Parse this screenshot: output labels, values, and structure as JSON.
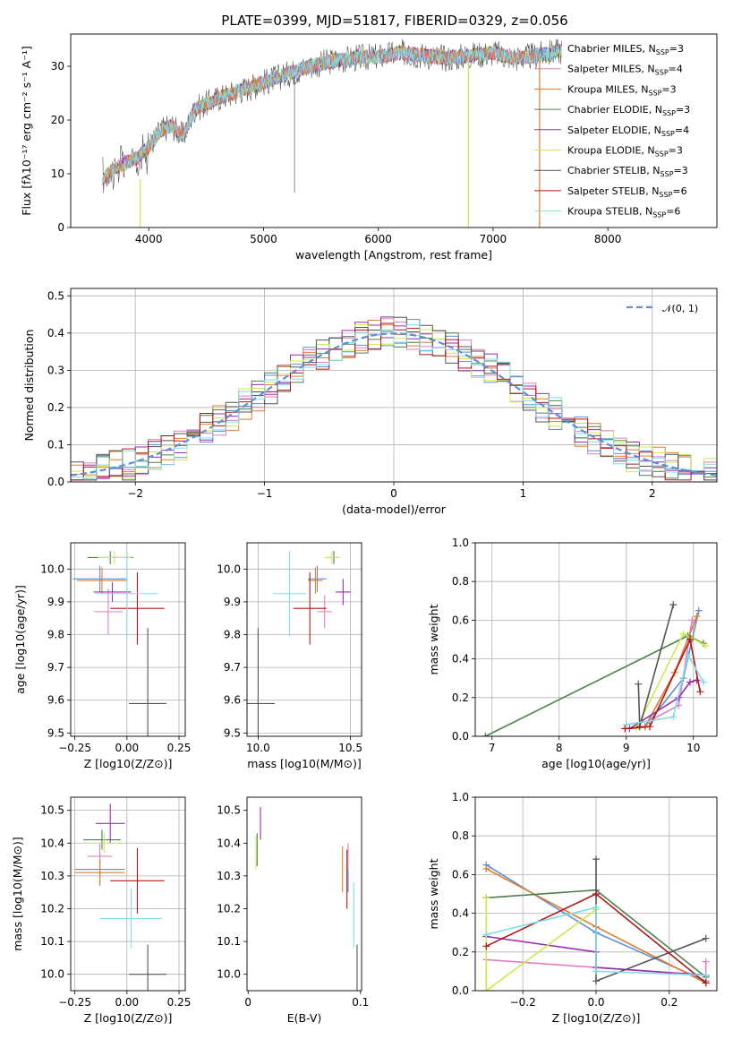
{
  "title": "PLATE=0399, MJD=51817, FIBERID=0329, z=0.056",
  "colors": {
    "Chabrier MILES": "#5b8fd6",
    "Salpeter MILES": "#e07fc0",
    "Kroupa MILES": "#e07b2c",
    "Chabrier ELODIE": "#4f7f4f",
    "Salpeter ELODIE": "#9b2fae",
    "Kroupa ELODIE": "#cde84f",
    "Chabrier STELIB": "#555555",
    "Salpeter STELIB": "#b01818",
    "Kroupa STELIB": "#7fdde6",
    "normal": "#5b8fd6"
  },
  "chart_data": [
    {
      "type": "line",
      "id": "spectrum",
      "title": "PLATE=0399, MJD=51817, FIBERID=0329, z=0.056",
      "xlabel": "wavelength [Angstrom, rest frame]",
      "ylabel": "Flux [fλ10⁻¹⁷ erg cm⁻² s⁻¹ A⁻¹]",
      "xlim": [
        3320,
        8950
      ],
      "ylim": [
        0,
        36
      ],
      "xticks": [
        4000,
        5000,
        6000,
        7000,
        8000
      ],
      "yticks": [
        0,
        10,
        20,
        30
      ],
      "grid": false,
      "legend_position": "top-right",
      "legend": [
        "Chabrier MILES, NSSP=3",
        "Salpeter MILES, NSSP=4",
        "Kroupa MILES, NSSP=3",
        "Chabrier ELODIE, NSSP=3",
        "Salpeter ELODIE, NSSP=4",
        "Kroupa ELODIE, NSSP=3",
        "Chabrier STELIB, NSSP=3",
        "Salpeter STELIB, NSSP=6",
        "Kroupa STELIB, NSSP=6"
      ],
      "continuum": {
        "x": [
          3600,
          3700,
          3800,
          3900,
          4000,
          4100,
          4200,
          4300,
          4400,
          4500,
          4600,
          4800,
          5000,
          5200,
          5400,
          5600,
          5800,
          6000,
          6200,
          6400,
          6600,
          6800,
          7000,
          7200,
          7400,
          7500,
          7600
        ],
        "y": [
          9,
          11,
          12,
          13,
          15,
          18,
          19,
          17,
          22,
          23,
          24,
          25.5,
          27,
          28.5,
          30,
          31,
          31.5,
          31.8,
          32.5,
          32,
          31.5,
          32,
          32.5,
          31.5,
          32,
          32.5,
          33
        ]
      }
    },
    {
      "type": "histogram",
      "id": "residuals",
      "xlabel": "(data-model)/error",
      "ylabel": "Normed distribution",
      "xlim": [
        -2.5,
        2.5
      ],
      "ylim": [
        0,
        0.52
      ],
      "xticks": [
        -2,
        -1,
        0,
        1,
        2
      ],
      "yticks": [
        0.0,
        0.1,
        0.2,
        0.3,
        0.4,
        0.5
      ],
      "grid": true,
      "legend_position": "top-right",
      "legend": [
        "𝒩(0, 1)"
      ],
      "bin_width": 0.1,
      "series_reference": "normal pdf"
    },
    {
      "type": "scatter",
      "id": "age-vs-Z",
      "xlabel": "Z [log10(Z/Z⊙)]",
      "ylabel": "age  [log10(age/yr)]",
      "xlim": [
        -0.27,
        0.28
      ],
      "ylim": [
        9.49,
        10.08
      ],
      "xticks": [
        -0.25,
        0.0,
        0.25
      ],
      "xticklabels": [
        "−0.25",
        "0.00",
        "0.25"
      ],
      "yticks": [
        9.5,
        9.6,
        9.7,
        9.8,
        9.9,
        10.0
      ],
      "grid": true,
      "errorbars": [
        {
          "series": "Chabrier MILES",
          "x": -0.13,
          "xerr": 0.13,
          "y": 9.97,
          "yerr": 0.04
        },
        {
          "series": "Salpeter MILES",
          "x": -0.09,
          "xerr": 0.07,
          "y": 9.87,
          "yerr": 0.07
        },
        {
          "series": "Kroupa MILES",
          "x": -0.12,
          "xerr": 0.12,
          "y": 9.965,
          "yerr": 0.04
        },
        {
          "series": "Chabrier ELODIE",
          "x": -0.08,
          "xerr": 0.11,
          "y": 10.035,
          "yerr": 0.02
        },
        {
          "series": "Salpeter ELODIE",
          "x": -0.07,
          "xerr": 0.09,
          "y": 9.93,
          "yerr": 0.03
        },
        {
          "series": "Kroupa ELODIE",
          "x": -0.06,
          "xerr": 0.08,
          "y": 10.035,
          "yerr": 0.02
        },
        {
          "series": "Chabrier STELIB",
          "x": 0.1,
          "xerr": 0.09,
          "y": 9.59,
          "yerr": 0.23
        },
        {
          "series": "Salpeter STELIB",
          "x": 0.05,
          "xerr": 0.13,
          "y": 9.88,
          "yerr": 0.11
        },
        {
          "series": "Kroupa STELIB",
          "x": 0.0,
          "xerr": 0.15,
          "y": 9.925,
          "yerr": 0.13
        }
      ]
    },
    {
      "type": "scatter",
      "id": "age-vs-mass",
      "xlabel": "mass [log10(M/M⊙)]",
      "ylabel": "",
      "xlim": [
        9.94,
        10.56
      ],
      "ylim": [
        9.49,
        10.08
      ],
      "xticks": [
        10.0,
        10.5
      ],
      "xticklabels": [
        "10.0",
        "10.5"
      ],
      "yticks": [
        9.5,
        9.6,
        9.7,
        9.8,
        9.9,
        10.0
      ],
      "grid": true,
      "errorbars": [
        {
          "series": "Chabrier MILES",
          "x": 10.32,
          "xerr": 0.05,
          "y": 9.97,
          "yerr": 0.04
        },
        {
          "series": "Salpeter MILES",
          "x": 10.36,
          "xerr": 0.04,
          "y": 9.87,
          "yerr": 0.05
        },
        {
          "series": "Kroupa MILES",
          "x": 10.31,
          "xerr": 0.04,
          "y": 9.965,
          "yerr": 0.04
        },
        {
          "series": "Chabrier ELODIE",
          "x": 10.41,
          "xerr": 0.03,
          "y": 10.035,
          "yerr": 0.02
        },
        {
          "series": "Salpeter ELODIE",
          "x": 10.46,
          "xerr": 0.04,
          "y": 9.93,
          "yerr": 0.04
        },
        {
          "series": "Kroupa ELODIE",
          "x": 10.4,
          "xerr": 0.04,
          "y": 10.035,
          "yerr": 0.02
        },
        {
          "series": "Chabrier STELIB",
          "x": 10.0,
          "xerr": 0.09,
          "y": 9.59,
          "yerr": 0.23
        },
        {
          "series": "Salpeter STELIB",
          "x": 10.28,
          "xerr": 0.09,
          "y": 9.88,
          "yerr": 0.11
        },
        {
          "series": "Kroupa STELIB",
          "x": 10.17,
          "xerr": 0.09,
          "y": 9.925,
          "yerr": 0.13
        }
      ]
    },
    {
      "type": "line",
      "id": "weight-vs-age",
      "xlabel": "age  [log10(age/yr)]",
      "ylabel": "mass weight",
      "xlim": [
        6.75,
        10.35
      ],
      "ylim": [
        0,
        1
      ],
      "xticks": [
        7,
        8,
        9,
        10
      ],
      "yticks": [
        0.0,
        0.2,
        0.4,
        0.6,
        0.8,
        1.0
      ],
      "grid": true,
      "series": [
        {
          "name": "Chabrier MILES",
          "points": [
            [
              9.28,
              0.05
            ],
            [
              9.85,
              0.3
            ],
            [
              10.08,
              0.65
            ]
          ]
        },
        {
          "name": "Salpeter MILES",
          "points": [
            [
              9.0,
              0.06
            ],
            [
              9.35,
              0.08
            ],
            [
              9.78,
              0.16
            ],
            [
              9.98,
              0.6
            ]
          ]
        },
        {
          "name": "Kroupa MILES",
          "points": [
            [
              9.28,
              0.05
            ],
            [
              9.72,
              0.33
            ],
            [
              10.05,
              0.62
            ]
          ]
        },
        {
          "name": "Chabrier ELODIE",
          "points": [
            [
              6.9,
              0.0
            ],
            [
              9.92,
              0.52
            ],
            [
              10.15,
              0.48
            ]
          ]
        },
        {
          "name": "Salpeter ELODIE",
          "points": [
            [
              9.05,
              0.04
            ],
            [
              9.78,
              0.2
            ],
            [
              9.95,
              0.28
            ],
            [
              10.05,
              0.29
            ]
          ]
        },
        {
          "name": "Kroupa ELODIE",
          "points": [
            [
              9.15,
              0.04
            ],
            [
              9.85,
              0.53
            ],
            [
              10.18,
              0.47
            ]
          ]
        },
        {
          "name": "Chabrier STELIB",
          "points": [
            [
              9.18,
              0.27
            ],
            [
              9.2,
              0.05
            ],
            [
              9.7,
              0.68
            ]
          ]
        },
        {
          "name": "Salpeter STELIB",
          "points": [
            [
              8.98,
              0.04
            ],
            [
              9.35,
              0.05
            ],
            [
              9.95,
              0.5
            ],
            [
              10.1,
              0.23
            ]
          ]
        },
        {
          "name": "Kroupa STELIB",
          "points": [
            [
              9.0,
              0.06
            ],
            [
              9.7,
              0.1
            ],
            [
              9.92,
              0.42
            ],
            [
              10.15,
              0.28
            ]
          ]
        }
      ]
    },
    {
      "type": "scatter",
      "id": "mass-vs-Z",
      "xlabel": "Z [log10(Z/Z⊙)]",
      "ylabel": "mass [log10(M/M⊙)]",
      "xlim": [
        -0.27,
        0.28
      ],
      "ylim": [
        9.95,
        10.54
      ],
      "xticks": [
        -0.25,
        0.0,
        0.25
      ],
      "xticklabels": [
        "−0.25",
        "0.00",
        "0.25"
      ],
      "yticks": [
        10.0,
        10.1,
        10.2,
        10.3,
        10.4,
        10.5
      ],
      "grid": true,
      "errorbars": [
        {
          "series": "Chabrier MILES",
          "x": -0.13,
          "xerr": 0.12,
          "y": 10.32,
          "yerr": 0.05
        },
        {
          "series": "Salpeter MILES",
          "x": -0.13,
          "xerr": 0.06,
          "y": 10.36,
          "yerr": 0.04
        },
        {
          "series": "Kroupa MILES",
          "x": -0.13,
          "xerr": 0.12,
          "y": 10.31,
          "yerr": 0.04
        },
        {
          "series": "Chabrier ELODIE",
          "x": -0.12,
          "xerr": 0.09,
          "y": 10.41,
          "yerr": 0.03
        },
        {
          "series": "Salpeter ELODIE",
          "x": -0.08,
          "xerr": 0.07,
          "y": 10.46,
          "yerr": 0.06
        },
        {
          "series": "Kroupa ELODIE",
          "x": -0.11,
          "xerr": 0.08,
          "y": 10.4,
          "yerr": 0.03
        },
        {
          "series": "Chabrier STELIB",
          "x": 0.1,
          "xerr": 0.09,
          "y": 10.0,
          "yerr": 0.09
        },
        {
          "series": "Salpeter STELIB",
          "x": 0.05,
          "xerr": 0.13,
          "y": 10.285,
          "yerr": 0.1
        },
        {
          "series": "Kroupa STELIB",
          "x": 0.02,
          "xerr": 0.15,
          "y": 10.17,
          "yerr": 0.09
        }
      ]
    },
    {
      "type": "scatter",
      "id": "mass-vs-ebv",
      "xlabel": "E(B-V)",
      "ylabel": "",
      "xlim": [
        -0.001,
        0.101
      ],
      "ylim": [
        9.95,
        10.54
      ],
      "xticks": [
        0,
        0.1
      ],
      "xticklabels": [
        "0",
        "0.1"
      ],
      "yticks": [
        10.0,
        10.1,
        10.2,
        10.3,
        10.4,
        10.5
      ],
      "grid": false,
      "errorbars": [
        {
          "series": "Chabrier MILES",
          "x": 0.089,
          "y": 10.32,
          "yerr": 0.07
        },
        {
          "series": "Salpeter MILES",
          "x": 0.089,
          "y": 10.36,
          "yerr": 0.04
        },
        {
          "series": "Kroupa MILES",
          "x": 0.084,
          "y": 10.32,
          "yerr": 0.07
        },
        {
          "series": "Chabrier ELODIE",
          "x": 0.008,
          "y": 10.38,
          "yerr": 0.05
        },
        {
          "series": "Salpeter ELODIE",
          "x": 0.011,
          "y": 10.46,
          "yerr": 0.05
        },
        {
          "series": "Kroupa ELODIE",
          "x": 0.007,
          "y": 10.37,
          "yerr": 0.05
        },
        {
          "series": "Chabrier STELIB",
          "x": 0.097,
          "y": 9.99,
          "yerr": 0.1
        },
        {
          "series": "Salpeter STELIB",
          "x": 0.088,
          "y": 10.29,
          "yerr": 0.09
        },
        {
          "series": "Kroupa STELIB",
          "x": 0.094,
          "y": 10.18,
          "yerr": 0.1
        }
      ]
    },
    {
      "type": "line",
      "id": "weight-vs-Z",
      "xlabel": "Z [log10(Z/Z⊙)]",
      "ylabel": "mass weight",
      "xlim": [
        -0.33,
        0.33
      ],
      "ylim": [
        0,
        1
      ],
      "xticks": [
        -0.2,
        0.0,
        0.2
      ],
      "xticklabels": [
        "−0.2",
        "0.0",
        "0.2"
      ],
      "yticks": [
        0.0,
        0.2,
        0.4,
        0.6,
        0.8,
        1.0
      ],
      "grid": true,
      "series": [
        {
          "name": "Chabrier MILES",
          "points": [
            [
              -0.3,
              0.65
            ],
            [
              0.0,
              0.3
            ],
            [
              0.3,
              0.05
            ]
          ]
        },
        {
          "name": "Salpeter MILES",
          "points": [
            [
              -0.3,
              0.16
            ],
            [
              0.0,
              0.12
            ],
            [
              0.3,
              0.08
            ],
            [
              0.3,
              0.15
            ]
          ]
        },
        {
          "name": "Kroupa MILES",
          "points": [
            [
              -0.3,
              0.63
            ],
            [
              0.0,
              0.33
            ],
            [
              0.3,
              0.04
            ]
          ]
        },
        {
          "name": "Chabrier ELODIE",
          "points": [
            [
              -0.3,
              0.48
            ],
            [
              0.0,
              0.52
            ],
            [
              0.3,
              0.07
            ]
          ]
        },
        {
          "name": "Salpeter ELODIE",
          "points": [
            [
              -0.3,
              0.28
            ],
            [
              0.0,
              0.2
            ],
            [
              0.0,
              0.12
            ],
            [
              0.3,
              0.08
            ]
          ]
        },
        {
          "name": "Kroupa ELODIE",
          "points": [
            [
              -0.3,
              0.48
            ],
            [
              -0.3,
              0.0
            ],
            [
              0.0,
              0.42
            ]
          ]
        },
        {
          "name": "Chabrier STELIB",
          "points": [
            [
              0.0,
              0.68
            ],
            [
              0.0,
              0.05
            ],
            [
              0.3,
              0.27
            ]
          ]
        },
        {
          "name": "Salpeter STELIB",
          "points": [
            [
              -0.3,
              0.23
            ],
            [
              0.0,
              0.5
            ],
            [
              0.3,
              0.04
            ]
          ]
        },
        {
          "name": "Kroupa STELIB",
          "points": [
            [
              -0.3,
              0.29
            ],
            [
              0.0,
              0.43
            ],
            [
              0.0,
              0.1
            ],
            [
              0.3,
              0.08
            ]
          ]
        }
      ]
    }
  ]
}
